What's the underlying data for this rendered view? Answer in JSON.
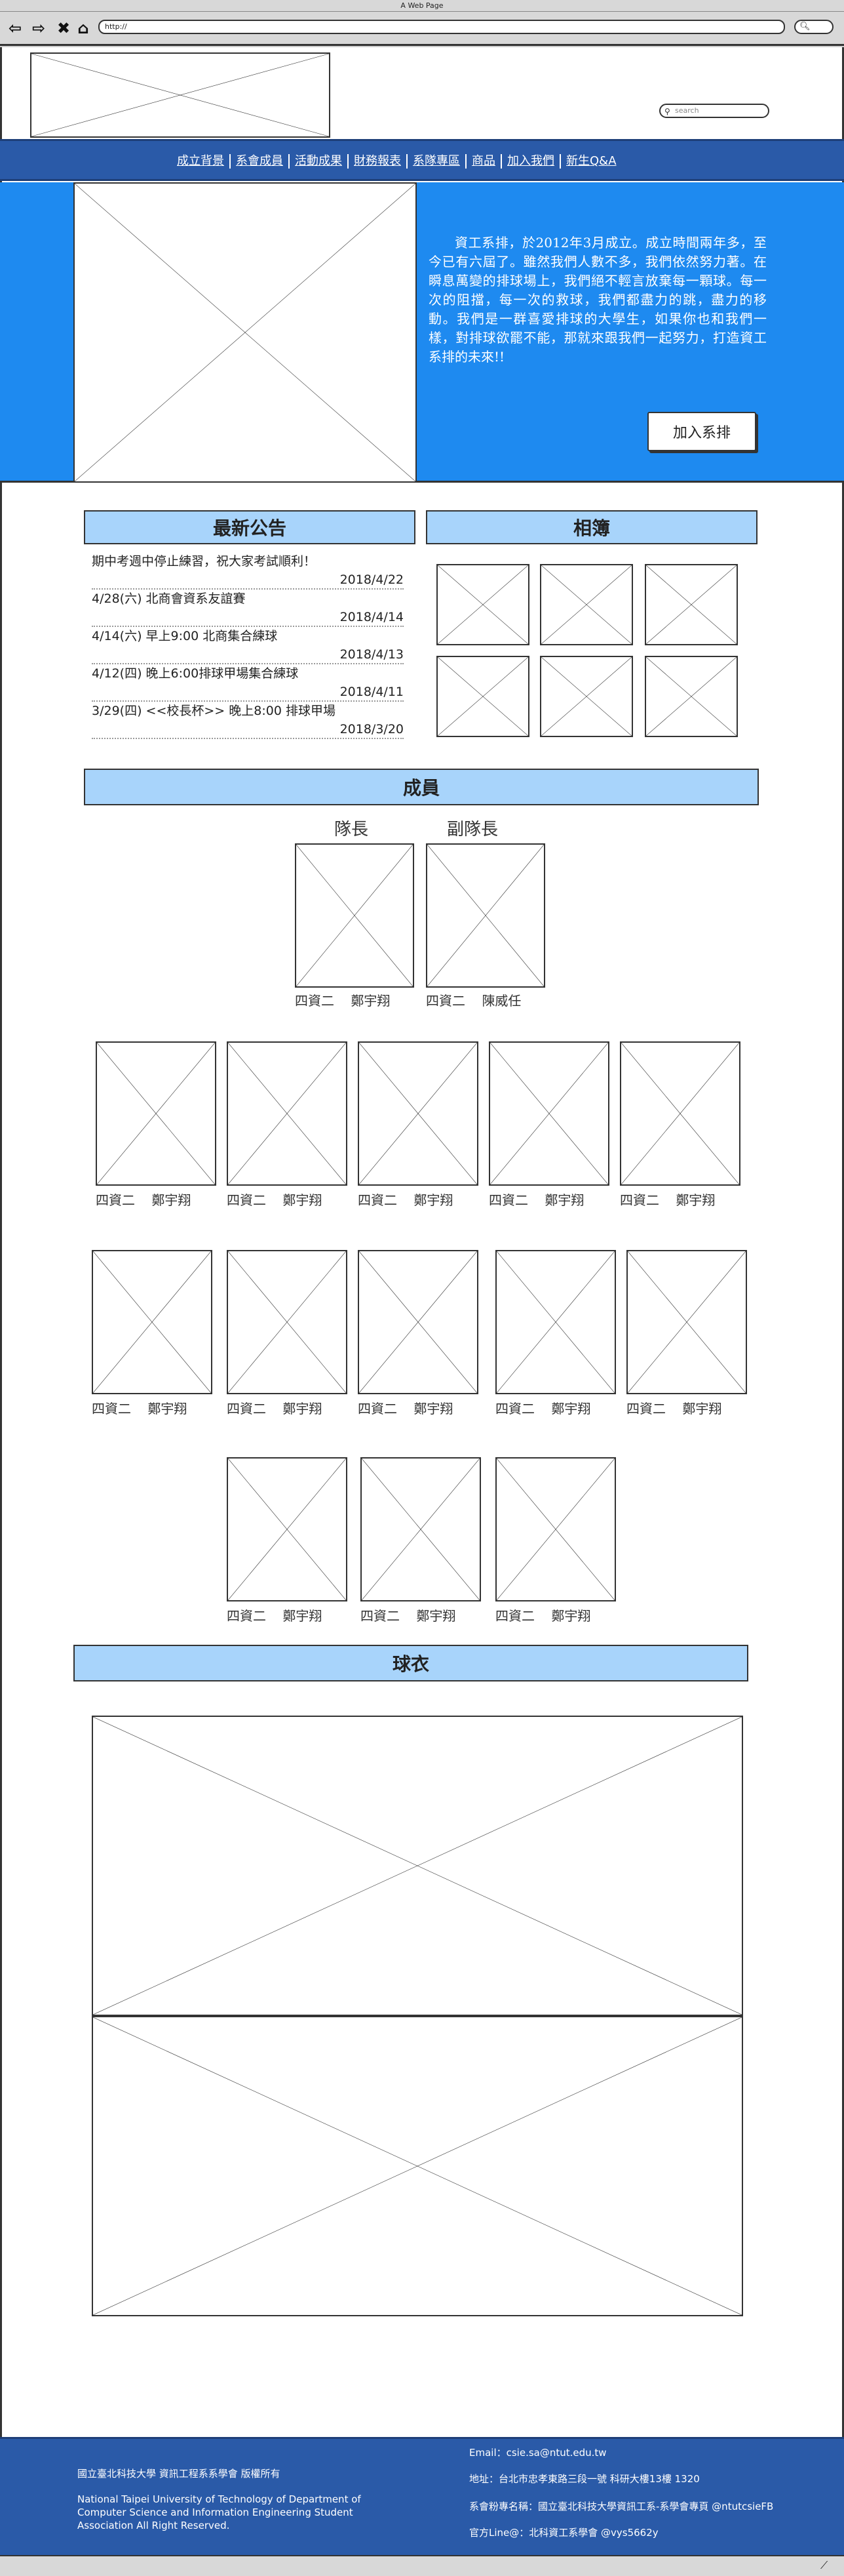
{
  "browser": {
    "title": "A Web Page",
    "url": "http://",
    "back_icon": "arrow-left-icon",
    "forward_icon": "arrow-right-icon",
    "stop_icon": "close-icon",
    "home_icon": "home-icon"
  },
  "header": {
    "search_placeholder": "search"
  },
  "nav": {
    "items": [
      "成立背景",
      "系會成員",
      "活動成果",
      "財務報表",
      "系隊專區",
      "商品",
      "加入我們",
      "新生Q&A"
    ]
  },
  "hero": {
    "text": "資工系排，於2012年3月成立。成立時間兩年多，至今已有六屆了。雖然我們人數不多，我們依然努力著。在瞬息萬變的排球場上，我們絕不輕言放棄每一顆球。每一次的阻擋，每一次的救球，我們都盡力的跳，盡力的移動。我們是一群喜愛排球的大學生，如果你也和我們一樣，對排球欲罷不能，那就來跟我們一起努力，打造資工系排的未來!!",
    "join_button": "加入系排"
  },
  "news": {
    "heading": "最新公告",
    "items": [
      {
        "title": "期中考週中停止練習，祝大家考試順利！",
        "date": "2018/4/22"
      },
      {
        "title": "4/28(六) 北商會資系友誼賽",
        "date": "2018/4/14"
      },
      {
        "title": "4/14(六) 早上9:00 北商集合練球",
        "date": "2018/4/13"
      },
      {
        "title": "4/12(四) 晚上6:00排球甲場集合練球",
        "date": "2018/4/11"
      },
      {
        "title": "3/29(四) <<校長杯>> 晚上8:00 排球甲場",
        "date": "2018/3/20"
      }
    ]
  },
  "album": {
    "heading": "相簿"
  },
  "members": {
    "heading": "成員",
    "leaders": [
      {
        "role": "隊長",
        "grade": "四資二",
        "name": "鄭宇翔"
      },
      {
        "role": "副隊長",
        "grade": "四資二",
        "name": "陳威任"
      }
    ],
    "rows": [
      [
        {
          "grade": "四資二",
          "name": "鄭宇翔"
        },
        {
          "grade": "四資二",
          "name": "鄭宇翔"
        },
        {
          "grade": "四資二",
          "name": "鄭宇翔"
        },
        {
          "grade": "四資二",
          "name": "鄭宇翔"
        },
        {
          "grade": "四資二",
          "name": "鄭宇翔"
        }
      ],
      [
        {
          "grade": "四資二",
          "name": "鄭宇翔"
        },
        {
          "grade": "四資二",
          "name": "鄭宇翔"
        },
        {
          "grade": "四資二",
          "name": "鄭宇翔"
        },
        {
          "grade": "四資二",
          "name": "鄭宇翔"
        },
        {
          "grade": "四資二",
          "name": "鄭宇翔"
        }
      ],
      [
        {
          "grade": "四資二",
          "name": "鄭宇翔"
        },
        {
          "grade": "四資二",
          "name": "鄭宇翔"
        },
        {
          "grade": "四資二",
          "name": "鄭宇翔"
        }
      ]
    ]
  },
  "jersey": {
    "heading": "球衣"
  },
  "footer": {
    "copyright_zh": "國立臺北科技大學 資訊工程系系學會 版權所有",
    "copyright_en": "National Taipei University of Technology of Department of Computer Science and Information Engineering Student Association All Right Reserved.",
    "email": "Email：csie.sa@ntut.edu.tw",
    "address": "地址：台北市忠孝東路三段一號 科研大樓13樓 1320",
    "fb": "系會粉專名稱：國立臺北科技大學資訊工系-系學會專頁 @ntutcsieFB",
    "line": "官方Line@：北科資工系學會 @vys5662y"
  }
}
